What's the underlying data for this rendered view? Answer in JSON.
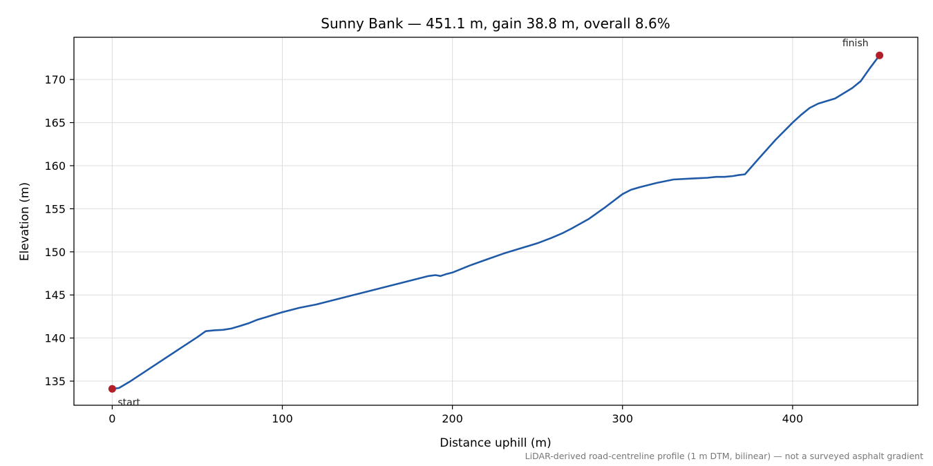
{
  "chart_data": {
    "type": "line",
    "title": "Sunny Bank — 451.1 m, gain 38.8 m, overall 8.6%",
    "xlabel": "Distance uphill (m)",
    "ylabel": "Elevation (m)",
    "xlim": [
      -22.5,
      473.6
    ],
    "ylim": [
      132.2,
      174.9
    ],
    "xticks": [
      0,
      100,
      200,
      300,
      400
    ],
    "yticks": [
      135,
      140,
      145,
      150,
      155,
      160,
      165,
      170
    ],
    "grid": true,
    "footnote": "LiDAR-derived road-centreline profile (1 m DTM, bilinear) — not a surveyed asphalt gradient",
    "series": [
      {
        "color": "#1f5aa8",
        "x": [
          0,
          4,
          10,
          20,
          30,
          40,
          50,
          55,
          60,
          65,
          70,
          75,
          80,
          85,
          90,
          95,
          100,
          110,
          120,
          130,
          140,
          150,
          160,
          170,
          180,
          186,
          190,
          193,
          196,
          200,
          210,
          220,
          230,
          240,
          250,
          258,
          265,
          270,
          280,
          290,
          300,
          305,
          310,
          320,
          330,
          340,
          350,
          355,
          360,
          365,
          368,
          372,
          380,
          390,
          400,
          405,
          410,
          415,
          420,
          425,
          430,
          435,
          440,
          445,
          451.1
        ],
        "y": [
          134.1,
          134.2,
          134.9,
          136.2,
          137.5,
          138.8,
          140.1,
          140.8,
          140.9,
          140.95,
          141.1,
          141.4,
          141.7,
          142.1,
          142.4,
          142.7,
          143.0,
          143.5,
          143.9,
          144.4,
          144.9,
          145.4,
          145.9,
          146.4,
          146.9,
          147.2,
          147.3,
          147.2,
          147.4,
          147.6,
          148.4,
          149.1,
          149.8,
          150.4,
          151.0,
          151.6,
          152.2,
          152.7,
          153.8,
          155.2,
          156.7,
          157.2,
          157.5,
          158.0,
          158.4,
          158.5,
          158.6,
          158.7,
          158.7,
          158.8,
          158.9,
          159.0,
          160.8,
          163.0,
          165.0,
          165.9,
          166.7,
          167.2,
          167.5,
          167.8,
          168.4,
          169.0,
          169.8,
          171.2,
          172.8
        ]
      }
    ],
    "annotations": [
      {
        "text": "start",
        "x": 0,
        "y": 134.1,
        "marker": true,
        "color": "#b41e28",
        "position": "below-right"
      },
      {
        "text": "finish",
        "x": 451.1,
        "y": 172.8,
        "marker": true,
        "color": "#b41e28",
        "position": "above-left"
      }
    ]
  }
}
